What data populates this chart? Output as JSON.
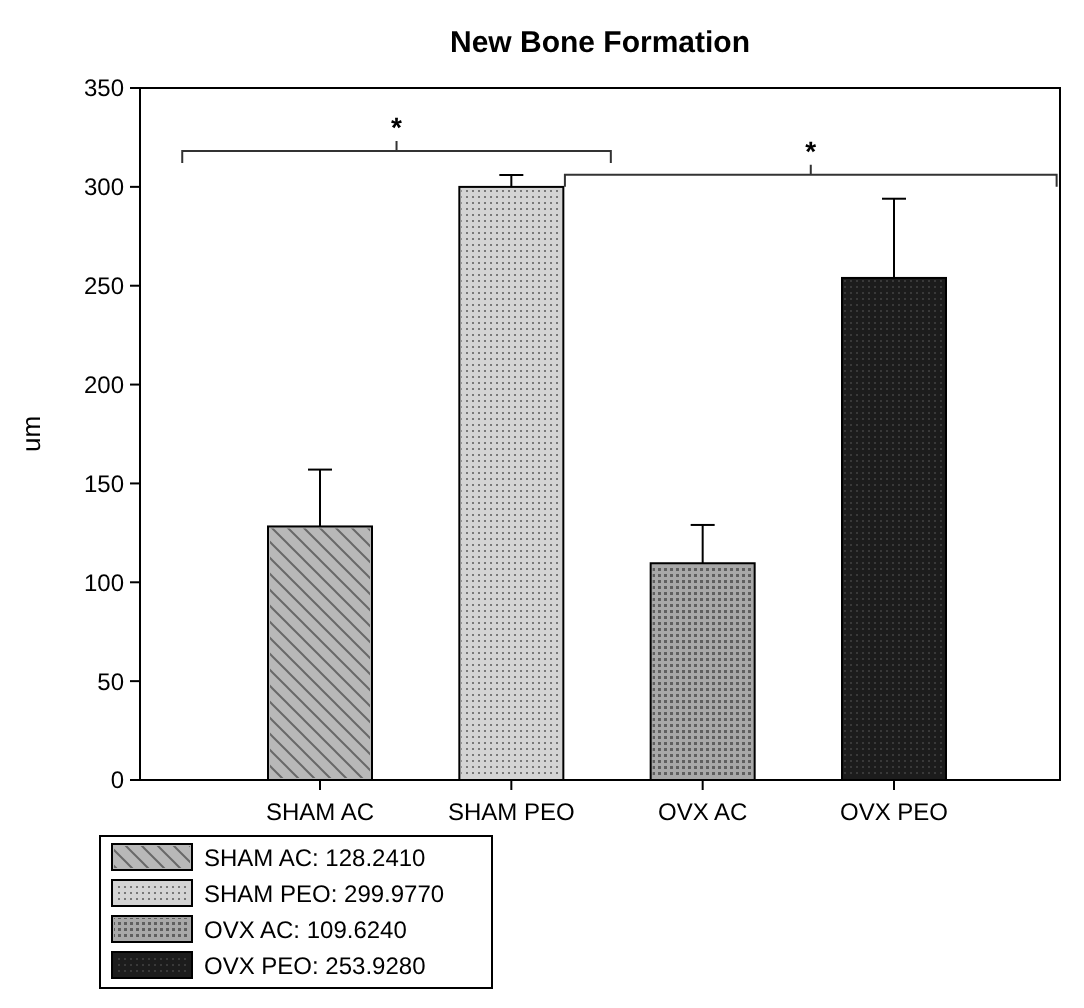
{
  "chart_data": {
    "type": "bar",
    "title": "New Bone Formation",
    "ylabel": "um",
    "categories": [
      "SHAM AC",
      "SHAM PEO",
      "OVX AC",
      "OVX PEO"
    ],
    "series": [
      {
        "name": "SHAM AC: 128.2410",
        "color": "#b8b8b8",
        "values": [
          128.241,
          null,
          null,
          null
        ],
        "errors": [
          [
            128.241,
            157
          ],
          null,
          null,
          null
        ]
      },
      {
        "name": "SHAM PEO: 299.9770",
        "color": "#d4d4d4",
        "values": [
          null,
          299.977,
          null,
          null
        ],
        "errors": [
          null,
          [
            299.977,
            306
          ],
          null,
          null
        ]
      },
      {
        "name": "OVX AC: 109.6240",
        "color": "#a8a8a8",
        "values": [
          null,
          null,
          109.624,
          null
        ],
        "errors": [
          null,
          null,
          [
            109.624,
            129
          ],
          null
        ]
      },
      {
        "name": "OVX PEO: 253.9280",
        "color": "#1c1c1c",
        "values": [
          null,
          null,
          null,
          253.928
        ],
        "errors": [
          null,
          null,
          null,
          [
            253.928,
            294
          ]
        ]
      }
    ],
    "ylim": [
      0,
      350
    ],
    "yticks": [
      0,
      50,
      100,
      150,
      200,
      250,
      300,
      350
    ],
    "legend": "bottom left",
    "annotations": [
      "*",
      "*"
    ]
  }
}
